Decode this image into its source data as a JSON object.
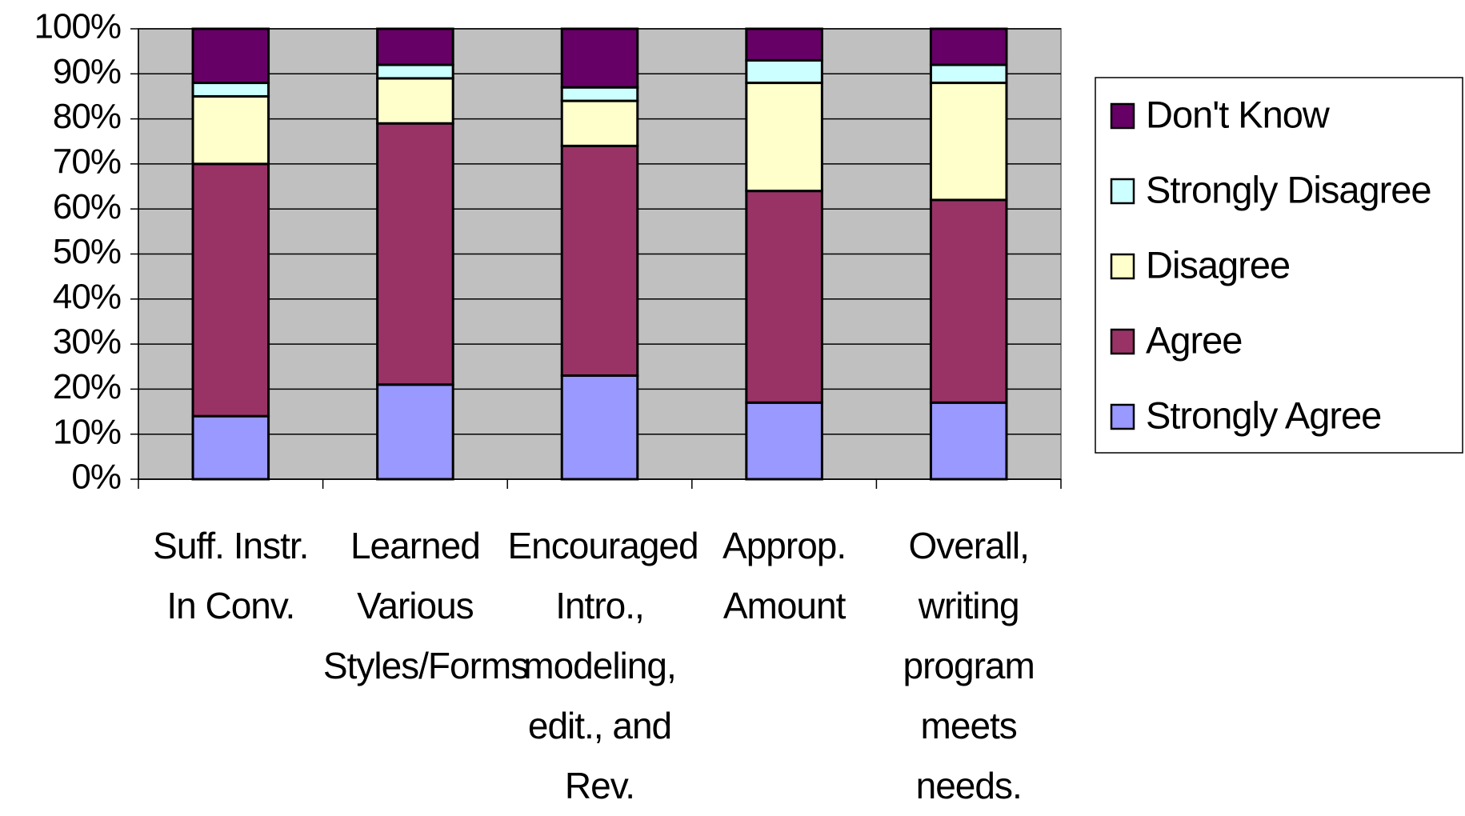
{
  "chart_data": {
    "type": "stacked_bar",
    "categories": [
      "Suff. Instr. In Conv.",
      "Learned Various Styles/Forms",
      "Encouraged Intro., modeling, edit., and Rev.",
      "Approp. Amount",
      "Overall, writing program meets needs."
    ],
    "series": [
      {
        "name": "Strongly Agree",
        "color": "#9999ff",
        "values": [
          14,
          21,
          23,
          17,
          17
        ]
      },
      {
        "name": "Agree",
        "color": "#993366",
        "values": [
          56,
          58,
          51,
          47,
          45
        ]
      },
      {
        "name": "Disagree",
        "color": "#ffffcc",
        "values": [
          15,
          10,
          10,
          24,
          26
        ]
      },
      {
        "name": "Strongly Disagree",
        "color": "#ccffff",
        "values": [
          3,
          3,
          3,
          5,
          4
        ]
      },
      {
        "name": "Don't Know",
        "color": "#660066",
        "values": [
          12,
          8,
          13,
          7,
          8
        ]
      }
    ],
    "ylim": [
      0,
      100
    ],
    "yticks": [
      {
        "value": 0,
        "label": "0%"
      },
      {
        "value": 10,
        "label": "10%"
      },
      {
        "value": 20,
        "label": "20%"
      },
      {
        "value": 30,
        "label": "30%"
      },
      {
        "value": 40,
        "label": "40%"
      },
      {
        "value": 50,
        "label": "50%"
      },
      {
        "value": 60,
        "label": "60%"
      },
      {
        "value": 70,
        "label": "70%"
      },
      {
        "value": 80,
        "label": "80%"
      },
      {
        "value": 90,
        "label": "90%"
      },
      {
        "value": 100,
        "label": "100%"
      }
    ],
    "grid": true,
    "plot_background": "#c0c0c0",
    "legend": "right"
  }
}
